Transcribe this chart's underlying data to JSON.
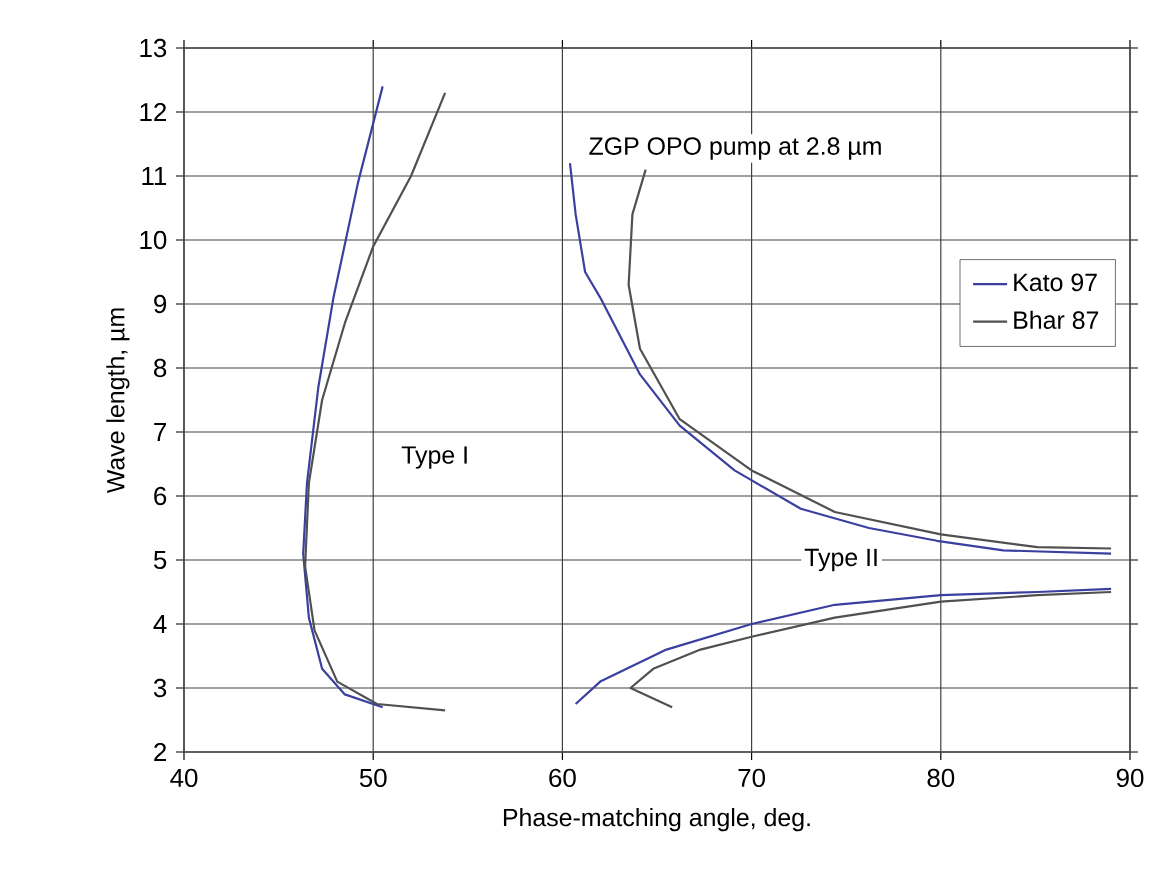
{
  "chart_data": {
    "type": "line",
    "xlabel": "Phase-matching angle, deg.",
    "ylabel": "Wave length, µm",
    "xlim": [
      40,
      90
    ],
    "ylim": [
      2,
      13
    ],
    "xticks": [
      40,
      50,
      60,
      70,
      80,
      90
    ],
    "yticks": [
      2,
      3,
      4,
      5,
      6,
      7,
      8,
      9,
      10,
      11,
      12,
      13
    ],
    "grid": true,
    "legend": "right",
    "marker": "none",
    "line_style": "solid",
    "series": [
      {
        "name": "Kato 97",
        "color": "#3a3fa0",
        "x": [
          50.5,
          49.2,
          47.9,
          47.1,
          46.5,
          46.3,
          46.6,
          47.3,
          48.5,
          50.5,
          null,
          60.4,
          60.7,
          61.2,
          62.0,
          64.1,
          66.2,
          69.1,
          72.6,
          76.2,
          79.8,
          83.3,
          89.0,
          null,
          60.7,
          62.0,
          65.5,
          70.0,
          74.4,
          80.0,
          85.1,
          89.0
        ],
        "values": [
          12.4,
          10.9,
          9.1,
          7.7,
          6.2,
          5.1,
          4.1,
          3.3,
          2.9,
          2.7,
          null,
          11.2,
          10.4,
          9.5,
          9.1,
          7.9,
          7.1,
          6.4,
          5.8,
          5.5,
          5.3,
          5.15,
          5.1,
          null,
          2.75,
          3.1,
          3.6,
          4.0,
          4.3,
          4.45,
          4.5,
          4.55
        ]
      },
      {
        "name": "Bhar 87",
        "color": "#505050",
        "x": [
          53.8,
          52.0,
          50.0,
          48.5,
          47.3,
          46.6,
          46.4,
          46.9,
          48.1,
          50.2,
          53.8,
          null,
          64.4,
          63.7,
          63.5,
          64.1,
          66.2,
          70.0,
          74.4,
          80.0,
          85.1,
          89.0,
          null,
          65.8,
          63.6,
          64.8,
          67.3,
          70.0,
          74.4,
          80.0,
          85.1,
          89.0
        ],
        "values": [
          12.3,
          11.0,
          9.9,
          8.7,
          7.5,
          6.2,
          4.9,
          3.9,
          3.1,
          2.75,
          2.65,
          null,
          11.1,
          10.4,
          9.3,
          8.3,
          7.2,
          6.4,
          5.75,
          5.4,
          5.2,
          5.18,
          null,
          2.7,
          3.0,
          3.3,
          3.6,
          3.8,
          4.1,
          4.35,
          4.45,
          4.5
        ]
      }
    ],
    "annotations": [
      "ZGP OPO pump at 2.8 µm",
      "Type I",
      "Type II"
    ]
  }
}
